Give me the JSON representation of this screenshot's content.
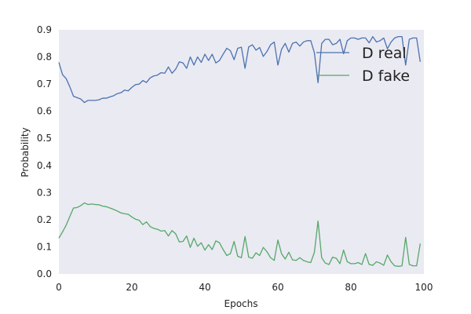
{
  "chart_data": {
    "type": "line",
    "title": "",
    "xlabel": "Epochs",
    "ylabel": "Probability",
    "xlim": [
      0,
      100
    ],
    "ylim": [
      0,
      0.9
    ],
    "xticks": [
      0,
      20,
      40,
      60,
      80,
      100
    ],
    "yticks": [
      0.0,
      0.1,
      0.2,
      0.3,
      0.4,
      0.5,
      0.6,
      0.7,
      0.8,
      0.9
    ],
    "xtick_labels": [
      "0",
      "20",
      "40",
      "60",
      "80",
      "100"
    ],
    "ytick_labels": [
      "0.0",
      "0.1",
      "0.2",
      "0.3",
      "0.4",
      "0.5",
      "0.6",
      "0.7",
      "0.8",
      "0.9"
    ],
    "grid": false,
    "legend_position": "top-right",
    "series": [
      {
        "name": "D real",
        "color": "#4c72b0",
        "values": [
          0.78,
          0.735,
          0.72,
          0.69,
          0.655,
          0.65,
          0.645,
          0.632,
          0.64,
          0.64,
          0.64,
          0.642,
          0.648,
          0.648,
          0.653,
          0.657,
          0.665,
          0.668,
          0.678,
          0.675,
          0.688,
          0.698,
          0.7,
          0.713,
          0.706,
          0.723,
          0.73,
          0.733,
          0.742,
          0.74,
          0.763,
          0.74,
          0.755,
          0.782,
          0.778,
          0.758,
          0.8,
          0.77,
          0.8,
          0.78,
          0.81,
          0.787,
          0.81,
          0.778,
          0.787,
          0.81,
          0.832,
          0.823,
          0.79,
          0.832,
          0.836,
          0.758,
          0.837,
          0.845,
          0.825,
          0.835,
          0.802,
          0.82,
          0.845,
          0.855,
          0.77,
          0.828,
          0.85,
          0.818,
          0.85,
          0.855,
          0.84,
          0.855,
          0.86,
          0.86,
          0.815,
          0.705,
          0.85,
          0.865,
          0.865,
          0.845,
          0.85,
          0.865,
          0.812,
          0.86,
          0.87,
          0.87,
          0.865,
          0.87,
          0.87,
          0.852,
          0.875,
          0.855,
          0.86,
          0.87,
          0.83,
          0.855,
          0.87,
          0.875,
          0.875,
          0.77,
          0.865,
          0.87,
          0.87,
          0.782
        ]
      },
      {
        "name": "D fake",
        "color": "#55a868",
        "values": [
          0.132,
          0.155,
          0.18,
          0.212,
          0.243,
          0.245,
          0.252,
          0.262,
          0.256,
          0.258,
          0.256,
          0.255,
          0.25,
          0.248,
          0.243,
          0.238,
          0.232,
          0.225,
          0.222,
          0.22,
          0.21,
          0.202,
          0.198,
          0.182,
          0.192,
          0.175,
          0.168,
          0.165,
          0.158,
          0.16,
          0.14,
          0.16,
          0.148,
          0.118,
          0.12,
          0.14,
          0.098,
          0.132,
          0.102,
          0.115,
          0.088,
          0.108,
          0.09,
          0.122,
          0.115,
          0.09,
          0.068,
          0.075,
          0.12,
          0.065,
          0.06,
          0.138,
          0.062,
          0.058,
          0.078,
          0.068,
          0.098,
          0.082,
          0.06,
          0.05,
          0.125,
          0.075,
          0.055,
          0.08,
          0.052,
          0.05,
          0.06,
          0.05,
          0.045,
          0.042,
          0.08,
          0.195,
          0.06,
          0.04,
          0.035,
          0.062,
          0.058,
          0.038,
          0.088,
          0.045,
          0.038,
          0.038,
          0.042,
          0.035,
          0.075,
          0.035,
          0.032,
          0.045,
          0.04,
          0.032,
          0.07,
          0.045,
          0.03,
          0.028,
          0.03,
          0.135,
          0.035,
          0.03,
          0.03,
          0.112
        ]
      }
    ]
  }
}
